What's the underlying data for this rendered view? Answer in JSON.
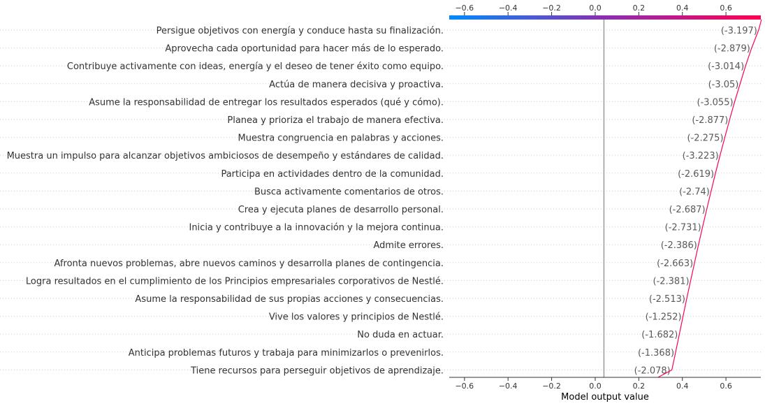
{
  "chart_data": {
    "type": "line",
    "xlabel": "Model output value",
    "xlim": [
      -0.67,
      0.76
    ],
    "xticks": [
      "−0.6",
      "−0.4",
      "−0.2",
      "0.0",
      "0.2",
      "0.4",
      "0.6"
    ],
    "xtick_values": [
      -0.6,
      -0.4,
      -0.2,
      0.0,
      0.2,
      0.4,
      0.6
    ],
    "base_value": 0.04,
    "colorbar": {
      "from": "#008bfb",
      "mid": "#8a2fb0",
      "to": "#ff0052"
    },
    "line_color": "#ff0052",
    "features": [
      {
        "label": "Persigue objetivos con energía y conduce hasta su finalización.",
        "value": "(-3.197)",
        "output": 0.75
      },
      {
        "label": "Aprovecha cada oportunidad para hacer más de lo esperado.",
        "value": "(-2.879)",
        "output": 0.718
      },
      {
        "label": "Contribuye activamente con ideas, energía y el deseo de tener éxito como equipo.",
        "value": "(-3.014)",
        "output": 0.69
      },
      {
        "label": "Actúa de manera decisiva y proactiva.",
        "value": "(-3.05)",
        "output": 0.665
      },
      {
        "label": "Asume la responsabilidad de entregar los resultados esperados (qué y cómo).",
        "value": "(-3.055)",
        "output": 0.64
      },
      {
        "label": "Planea y prioriza el trabajo de manera efectiva.",
        "value": "(-2.877)",
        "output": 0.617
      },
      {
        "label": "Muestra congruencia en palabras y acciones.",
        "value": "(-2.275)",
        "output": 0.595
      },
      {
        "label": "Muestra un impulso para alcanzar objetivos ambiciosos de desempeño y estándares de calidad.",
        "value": "(-3.223)",
        "output": 0.573
      },
      {
        "label": "Participa en actividades dentro de la comunidad.",
        "value": "(-2.619)",
        "output": 0.552
      },
      {
        "label": "Busca activamente comentarios de otros.",
        "value": "(-2.74)",
        "output": 0.532
      },
      {
        "label": "Crea y ejecuta planes de desarrollo personal.",
        "value": "(-2.687)",
        "output": 0.512
      },
      {
        "label": "Inicia y contribuye a la innovación y la mejora continua.",
        "value": "(-2.731)",
        "output": 0.493
      },
      {
        "label": "Admite errores.",
        "value": "(-2.386)",
        "output": 0.474
      },
      {
        "label": "Afronta nuevos problemas, abre nuevos caminos y desarrolla planes de contingencia.",
        "value": "(-2.663)",
        "output": 0.456
      },
      {
        "label": "Logra resultados en el cumplimiento de los Principios empresariales corporativos de Nestlé.",
        "value": "(-2.381)",
        "output": 0.438
      },
      {
        "label": "Asume la responsabilidad de sus propias acciones y consecuencias.",
        "value": "(-2.513)",
        "output": 0.42
      },
      {
        "label": "Vive los valores y principios de Nestlé.",
        "value": "(-1.252)",
        "output": 0.403
      },
      {
        "label": "No duda en actuar.",
        "value": "(-1.682)",
        "output": 0.386
      },
      {
        "label": "Anticipa problemas futuros y trabaja para minimizarlos o prevenirlos.",
        "value": "(-1.368)",
        "output": 0.369
      },
      {
        "label": "Tiene recursos para perseguir objetivos de aprendizaje.",
        "value": "(-2.078)",
        "output": 0.352
      }
    ],
    "final_output": 0.288
  }
}
